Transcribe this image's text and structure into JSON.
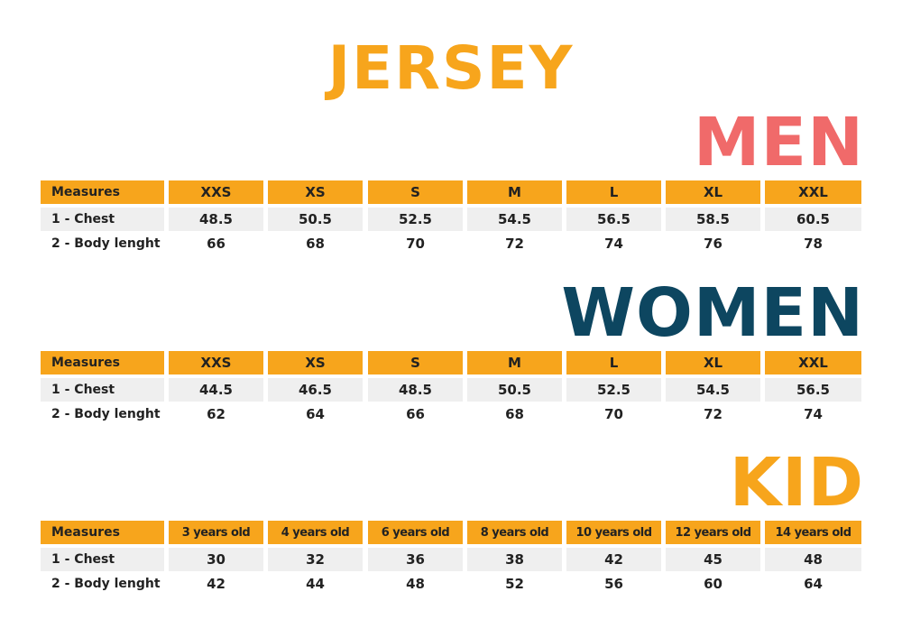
{
  "title": "JERSEY",
  "sections": [
    {
      "heading": "MEN",
      "table": {
        "header": [
          "Measures",
          "XXS",
          "XS",
          "S",
          "M",
          "L",
          "XL",
          "XXL"
        ],
        "rows": [
          [
            "1 - Chest",
            "48.5",
            "50.5",
            "52.5",
            "54.5",
            "56.5",
            "58.5",
            "60.5"
          ],
          [
            "2 - Body lenght",
            "66",
            "68",
            "70",
            "72",
            "74",
            "76",
            "78"
          ]
        ]
      }
    },
    {
      "heading": "WOMEN",
      "table": {
        "header": [
          "Measures",
          "XXS",
          "XS",
          "S",
          "M",
          "L",
          "XL",
          "XXL"
        ],
        "rows": [
          [
            "1 - Chest",
            "44.5",
            "46.5",
            "48.5",
            "50.5",
            "52.5",
            "54.5",
            "56.5"
          ],
          [
            "2 - Body lenght",
            "62",
            "64",
            "66",
            "68",
            "70",
            "72",
            "74"
          ]
        ]
      }
    },
    {
      "heading": "KID",
      "table": {
        "header": [
          "Measures",
          "3 years old",
          "4 years old",
          "6 years old",
          "8 years old",
          "10 years old",
          "12 years old",
          "14 years old"
        ],
        "rows": [
          [
            "1 - Chest",
            "30",
            "32",
            "36",
            "38",
            "42",
            "45",
            "48"
          ],
          [
            "2 - Body lenght",
            "42",
            "44",
            "48",
            "52",
            "56",
            "60",
            "64"
          ]
        ]
      }
    }
  ]
}
